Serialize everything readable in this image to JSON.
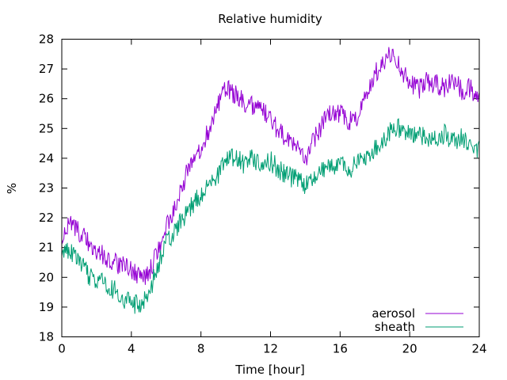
{
  "chart_data": {
    "type": "line",
    "title": "Relative humidity",
    "xlabel": "Time [hour]",
    "ylabel": "%",
    "xlim": [
      0,
      24
    ],
    "ylim": [
      18,
      28
    ],
    "x_ticks": [
      0,
      4,
      8,
      12,
      16,
      20,
      24
    ],
    "y_ticks": [
      18,
      19,
      20,
      21,
      22,
      23,
      24,
      25,
      26,
      27,
      28
    ],
    "grid": false,
    "legend_position": "bottom-right",
    "series": [
      {
        "name": "aerosol",
        "color": "#9400d3",
        "x": [
          0,
          0.5,
          1,
          1.5,
          2,
          2.5,
          3,
          3.5,
          4,
          4.5,
          5,
          5.5,
          6,
          6.5,
          7,
          7.5,
          8,
          8.5,
          9,
          9.5,
          10,
          10.5,
          11,
          11.5,
          12,
          12.5,
          13,
          13.5,
          14,
          14.5,
          15,
          15.5,
          16,
          16.5,
          17,
          17.5,
          18,
          18.5,
          19,
          19.5,
          20,
          20.5,
          21,
          21.5,
          22,
          22.5,
          23,
          23.5,
          24
        ],
        "values": [
          21.3,
          21.8,
          21.5,
          21.2,
          20.9,
          20.7,
          20.5,
          20.4,
          20.2,
          20.0,
          20.1,
          20.9,
          21.7,
          22.3,
          23.2,
          24.0,
          24.3,
          25.0,
          25.8,
          26.4,
          26.1,
          25.9,
          25.8,
          25.6,
          25.3,
          24.9,
          24.6,
          24.3,
          24.0,
          24.6,
          25.2,
          25.6,
          25.5,
          25.2,
          25.4,
          26.1,
          26.8,
          27.3,
          27.6,
          27.0,
          26.6,
          26.3,
          26.6,
          26.5,
          26.4,
          26.6,
          26.3,
          26.4,
          25.9
        ]
      },
      {
        "name": "sheath",
        "color": "#009e73",
        "x": [
          0,
          0.5,
          1,
          1.5,
          2,
          2.5,
          3,
          3.5,
          4,
          4.5,
          5,
          5.5,
          6,
          6.5,
          7,
          7.5,
          8,
          8.5,
          9,
          9.5,
          10,
          10.5,
          11,
          11.5,
          12,
          12.5,
          13,
          13.5,
          14,
          14.5,
          15,
          15.5,
          16,
          16.5,
          17,
          17.5,
          18,
          18.5,
          19,
          19.5,
          20,
          20.5,
          21,
          21.5,
          22,
          22.5,
          23,
          23.5,
          24
        ],
        "values": [
          20.8,
          20.9,
          20.5,
          20.1,
          19.9,
          19.8,
          19.6,
          19.3,
          19.1,
          19.1,
          19.5,
          20.3,
          21.1,
          21.5,
          22.0,
          22.4,
          22.8,
          23.1,
          23.5,
          24.0,
          24.1,
          23.8,
          24.0,
          23.8,
          23.9,
          23.6,
          23.4,
          23.3,
          23.1,
          23.3,
          23.6,
          23.8,
          23.8,
          23.6,
          23.8,
          24.0,
          24.3,
          24.6,
          25.0,
          25.0,
          24.9,
          24.8,
          24.7,
          24.7,
          24.8,
          24.6,
          24.7,
          24.5,
          24.3
        ]
      }
    ]
  }
}
